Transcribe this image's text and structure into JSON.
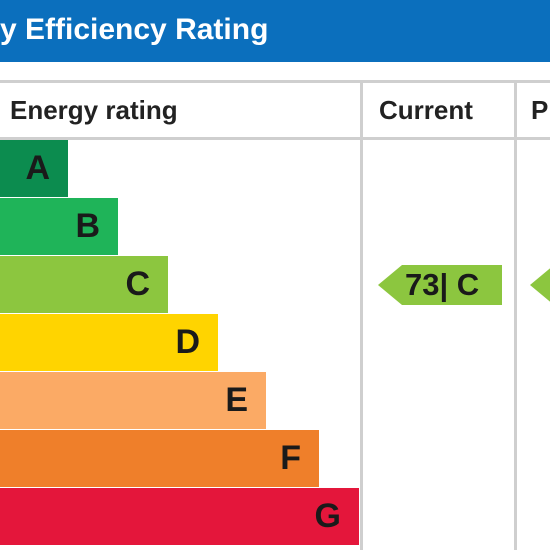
{
  "title": "y Efficiency Rating",
  "columns": {
    "energy_rating": "Energy rating",
    "current": "Current",
    "potential": "P"
  },
  "chart_data": {
    "type": "bar",
    "categories": [
      "A",
      "B",
      "C",
      "D",
      "E",
      "F",
      "G"
    ],
    "bands": [
      {
        "letter": "A",
        "color": "#0c8c4f"
      },
      {
        "letter": "B",
        "color": "#1fb459"
      },
      {
        "letter": "C",
        "color": "#8cc63f"
      },
      {
        "letter": "D",
        "color": "#ffd400"
      },
      {
        "letter": "E",
        "color": "#fbaa65"
      },
      {
        "letter": "F",
        "color": "#ef7f2a"
      },
      {
        "letter": "G",
        "color": "#e4163b"
      }
    ],
    "current": {
      "value": 73,
      "band": "C",
      "label": "73| C",
      "color": "#8cc63f"
    },
    "potential": {
      "band": "C",
      "color": "#8cc63f"
    }
  }
}
